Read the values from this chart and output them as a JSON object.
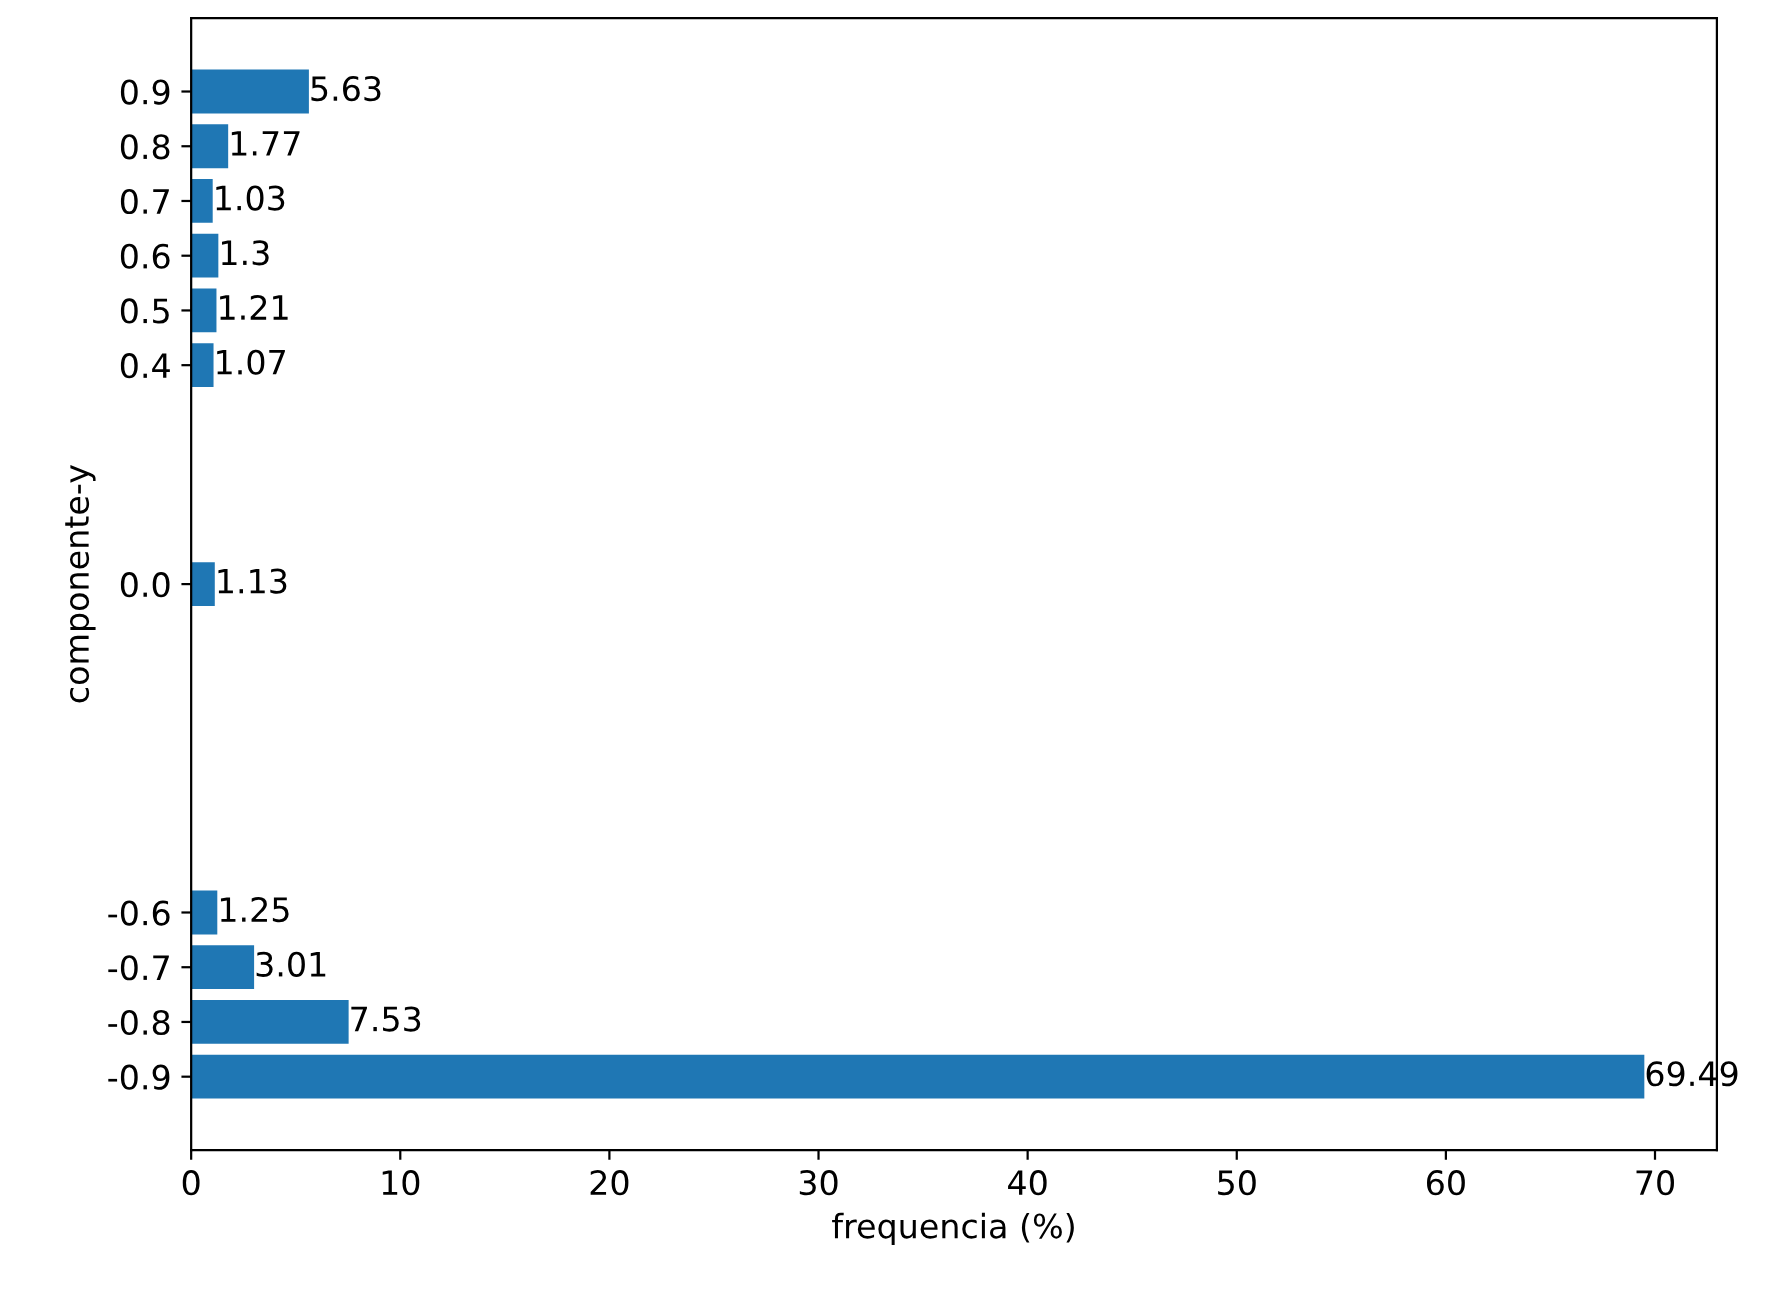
{
  "chart_data": {
    "type": "bar",
    "orientation": "horizontal",
    "xlabel": "frequencia (%)",
    "ylabel": "componente-y",
    "x": [
      0.9,
      0.8,
      0.7,
      0.6,
      0.5,
      0.4,
      0.0,
      -0.6,
      -0.7,
      -0.8,
      -0.9
    ],
    "values": [
      5.63,
      1.77,
      1.03,
      1.3,
      1.21,
      1.07,
      1.13,
      1.25,
      3.01,
      7.53,
      69.49
    ],
    "color": "#1f77b4",
    "data_labels": true,
    "xlim": [
      0,
      72.96
    ],
    "xticks": [
      0,
      10,
      20,
      30,
      40,
      50,
      60,
      70
    ],
    "ylim": [
      -1.034,
      1.034
    ],
    "yticks": [
      {
        "value": 0.9,
        "label": "0.9"
      },
      {
        "value": 0.8,
        "label": "0.8"
      },
      {
        "value": 0.7,
        "label": "0.7"
      },
      {
        "value": 0.6,
        "label": "0.6"
      },
      {
        "value": 0.5,
        "label": "0.5"
      },
      {
        "value": 0.4,
        "label": "0.4"
      },
      {
        "value": 0.0,
        "label": "0.0"
      },
      {
        "value": -0.6,
        "label": "-0.6"
      },
      {
        "value": -0.7,
        "label": "-0.7"
      },
      {
        "value": -0.8,
        "label": "-0.8"
      },
      {
        "value": -0.9,
        "label": "-0.9"
      }
    ],
    "grid": false
  }
}
